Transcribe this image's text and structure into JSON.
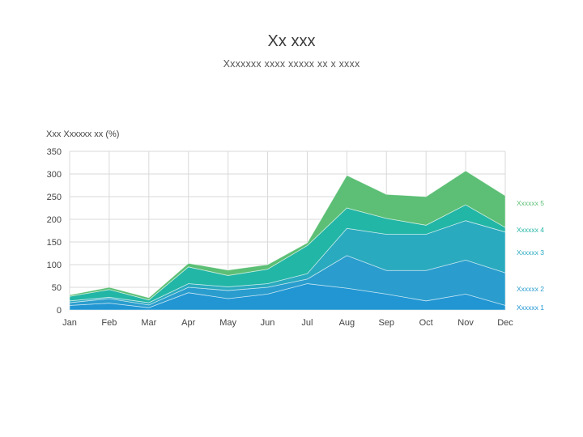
{
  "title": "Xx xxx",
  "subtitle": "Xxxxxxx xxxx xxxxx xx x xxxx",
  "chart_data": {
    "type": "area",
    "stacked": true,
    "ylabel": "Xxx Xxxxxx xx (%)",
    "ylim": [
      0,
      350
    ],
    "yticks": [
      0,
      50,
      100,
      150,
      200,
      250,
      300,
      350
    ],
    "grid": true,
    "legend": "inline-right",
    "categories": [
      "Jan",
      "Feb",
      "Mar",
      "Apr",
      "May",
      "Jun",
      "Jul",
      "Aug",
      "Sep",
      "Oct",
      "Nov",
      "Dec"
    ],
    "series": [
      {
        "name": "Xxxxxx 1",
        "color": "#2196d3",
        "values": [
          10,
          15,
          5,
          38,
          25,
          35,
          58,
          48,
          35,
          20,
          35,
          10
        ]
      },
      {
        "name": "Xxxxxx 2",
        "color": "#2a9dce",
        "values": [
          6,
          10,
          6,
          12,
          18,
          15,
          10,
          72,
          52,
          67,
          75,
          72
        ]
      },
      {
        "name": "Xxxxxx 3",
        "color": "#2aaabf",
        "values": [
          4,
          3,
          5,
          8,
          8,
          8,
          12,
          60,
          80,
          80,
          87,
          90
        ]
      },
      {
        "name": "Xxxxxx 4",
        "color": "#22b6a6",
        "values": [
          10,
          17,
          6,
          37,
          25,
          32,
          62,
          45,
          35,
          20,
          35,
          10
        ]
      },
      {
        "name": "Xxxxxx 5",
        "color": "#5cbf75",
        "values": [
          3,
          5,
          5,
          8,
          12,
          10,
          6,
          72,
          53,
          63,
          75,
          70
        ]
      }
    ]
  }
}
